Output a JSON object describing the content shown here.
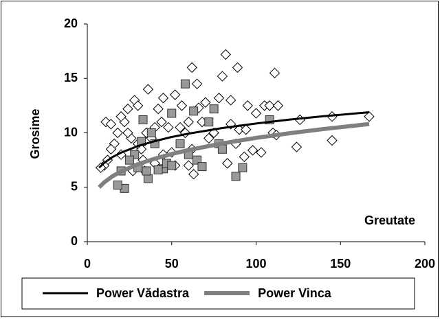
{
  "chart_data": {
    "type": "scatter",
    "x_label": "Greutate",
    "y_label": "Grosime",
    "xlim": [
      0,
      200
    ],
    "xticks": [
      0,
      50,
      100,
      150,
      200
    ],
    "ylim": [
      0,
      20
    ],
    "yticks": [
      0,
      5,
      10,
      15,
      20
    ],
    "grid": false,
    "legend": "bottom",
    "series": [
      {
        "type": "scatter",
        "marker": "diamond",
        "color": "#000000",
        "x": [
          82,
          62,
          89,
          111,
          36,
          65,
          80,
          45,
          52,
          28,
          30,
          56,
          70,
          78,
          85,
          95,
          100,
          105,
          108,
          113,
          126,
          145,
          167,
          124,
          145,
          103,
          98,
          93,
          83,
          88,
          90,
          94,
          110,
          112,
          63,
          60,
          52,
          58,
          55,
          60,
          68,
          72,
          75,
          48,
          44,
          42,
          40,
          38,
          35,
          32,
          30,
          26,
          24,
          22,
          20,
          18,
          16,
          14,
          12,
          10,
          8,
          11,
          14,
          24,
          33,
          27,
          50,
          45,
          62,
          66,
          85,
          40,
          34,
          20
        ],
        "values": [
          17.2,
          16,
          16,
          15.5,
          14,
          14.5,
          15.2,
          13.2,
          13.5,
          13,
          12.5,
          12.5,
          12.8,
          13.2,
          13,
          12.5,
          11.8,
          12.5,
          12.5,
          12.5,
          11.2,
          11.5,
          11.5,
          8.7,
          9.3,
          8.2,
          8.4,
          7.8,
          7.2,
          9,
          10.3,
          10.3,
          10,
          9.8,
          6.2,
          7,
          7,
          10,
          10.5,
          11,
          11,
          9.5,
          10,
          10.5,
          11,
          12.2,
          10.5,
          9.5,
          10,
          8.5,
          9,
          9.5,
          10,
          11,
          11.5,
          10,
          9,
          8.5,
          7.5,
          7,
          6.8,
          11,
          10.8,
          12.2,
          7.5,
          6.5,
          8.2,
          8,
          8.5,
          12.3,
          10.8,
          7.2,
          6.5,
          8
        ]
      },
      {
        "type": "scatter",
        "marker": "square",
        "color": "#999999",
        "x": [
          58,
          63,
          75,
          50,
          33,
          72,
          108,
          88,
          92,
          22,
          18,
          36,
          45,
          42,
          30,
          65,
          68,
          55,
          38,
          40,
          28,
          25,
          47,
          50,
          20,
          35,
          78,
          80,
          32,
          60
        ],
        "values": [
          14.5,
          12,
          12.2,
          11.8,
          11.2,
          11,
          11.2,
          6,
          6.8,
          4.9,
          5.2,
          5.8,
          6.7,
          6.6,
          6.8,
          7.5,
          6.9,
          9,
          10,
          9,
          8,
          7.5,
          7.2,
          7,
          6.5,
          6.5,
          9,
          8.5,
          9.2,
          8
        ]
      },
      {
        "type": "line",
        "name": "Power Vădastra",
        "color": "#000000",
        "width": 3,
        "x": [
          7,
          10,
          15,
          20,
          30,
          40,
          50,
          60,
          80,
          100,
          120,
          140,
          167
        ],
        "values": [
          6.8,
          7.24,
          7.78,
          8.18,
          8.79,
          9.24,
          9.62,
          9.93,
          10.44,
          10.86,
          11.22,
          11.53,
          11.89
        ]
      },
      {
        "type": "line",
        "name": "Power Vinca",
        "color": "#808080",
        "width": 6,
        "x": [
          7,
          10,
          15,
          20,
          30,
          40,
          50,
          60,
          80,
          100,
          120,
          140,
          167
        ],
        "values": [
          5.0,
          5.45,
          6.02,
          6.45,
          7.12,
          7.63,
          8.06,
          8.42,
          9.03,
          9.54,
          9.97,
          10.35,
          10.81
        ]
      }
    ]
  }
}
